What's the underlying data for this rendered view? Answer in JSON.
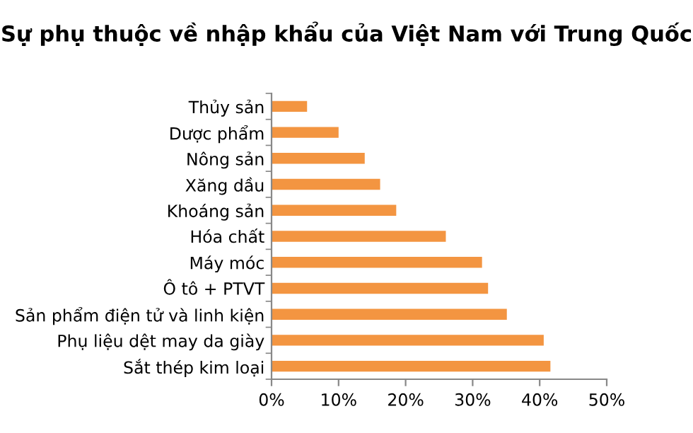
{
  "chart_data": {
    "type": "bar",
    "orientation": "horizontal",
    "title": "Sự phụ thuộc về nhập khẩu của Việt Nam với Trung Quốc",
    "categories": [
      "Thủy sản",
      "Dược phẩm",
      "Nông sản",
      "Xăng dầu",
      "Khoáng sản",
      "Hóa chất",
      "Máy móc",
      "Ô tô + PTVT",
      "Sản phẩm điện tử và linh kiện",
      "Phụ liệu dệt may da giày",
      "Sắt thép kim loại"
    ],
    "values": [
      5.3,
      10.0,
      13.9,
      16.2,
      18.6,
      26.0,
      31.4,
      32.3,
      35.1,
      40.6,
      41.6
    ],
    "color": "#f39541",
    "xlim": [
      0,
      50
    ],
    "xticks": [
      {
        "value": 0,
        "label": "0%"
      },
      {
        "value": 10,
        "label": "10%"
      },
      {
        "value": 20,
        "label": "20%"
      },
      {
        "value": 30,
        "label": "30%"
      },
      {
        "value": 40,
        "label": "40%"
      },
      {
        "value": 50,
        "label": "50%"
      }
    ],
    "grid": false
  }
}
